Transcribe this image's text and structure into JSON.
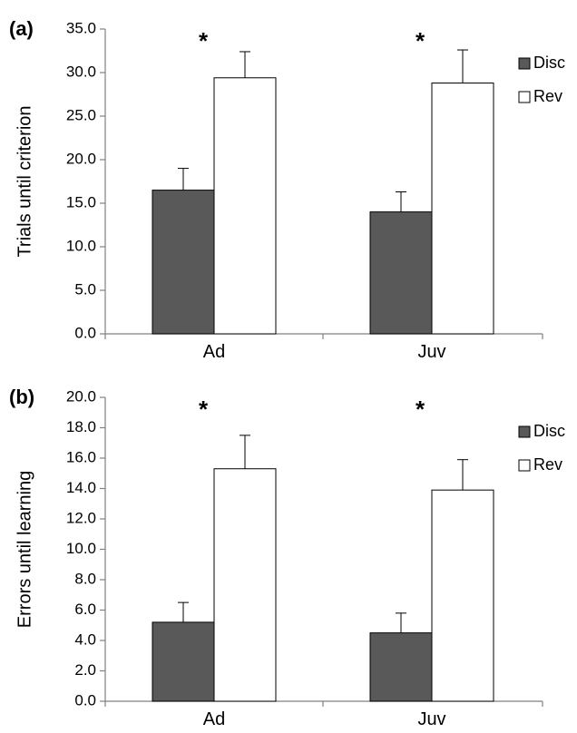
{
  "chart_data": [
    {
      "type": "bar",
      "panel_label": "(a)",
      "categories": [
        "Ad",
        "Juv"
      ],
      "ylabel": "Trials until criterion",
      "ylim": [
        0,
        35
      ],
      "y_ticks": [
        "0.0",
        "5.0",
        "10.0",
        "15.0",
        "20.0",
        "25.0",
        "30.0",
        "35.0"
      ],
      "y_tick_values": [
        0,
        5,
        10,
        15,
        20,
        25,
        30,
        35
      ],
      "grid": false,
      "legend_position": "right",
      "series": [
        {
          "name": "Disc",
          "color": "#595959",
          "values": [
            16.5,
            14.0
          ],
          "errors": [
            2.5,
            2.3
          ]
        },
        {
          "name": "Rev",
          "color": "#ffffff",
          "values": [
            29.4,
            28.8
          ],
          "errors": [
            3.0,
            3.8
          ]
        }
      ],
      "annotations": [
        "*",
        "*"
      ]
    },
    {
      "type": "bar",
      "panel_label": "(b)",
      "categories": [
        "Ad",
        "Juv"
      ],
      "ylabel": "Errors until learning",
      "ylim": [
        0,
        20
      ],
      "y_ticks": [
        "0.0",
        "2.0",
        "4.0",
        "6.0",
        "8.0",
        "10.0",
        "12.0",
        "14.0",
        "16.0",
        "18.0",
        "20.0"
      ],
      "y_tick_values": [
        0,
        2,
        4,
        6,
        8,
        10,
        12,
        14,
        16,
        18,
        20
      ],
      "grid": false,
      "legend_position": "right",
      "series": [
        {
          "name": "Disc",
          "color": "#595959",
          "values": [
            5.2,
            4.5
          ],
          "errors": [
            1.3,
            1.3
          ]
        },
        {
          "name": "Rev",
          "color": "#ffffff",
          "values": [
            15.3,
            13.9
          ],
          "errors": [
            2.2,
            2.0
          ]
        }
      ],
      "annotations": [
        "*",
        "*"
      ]
    }
  ]
}
